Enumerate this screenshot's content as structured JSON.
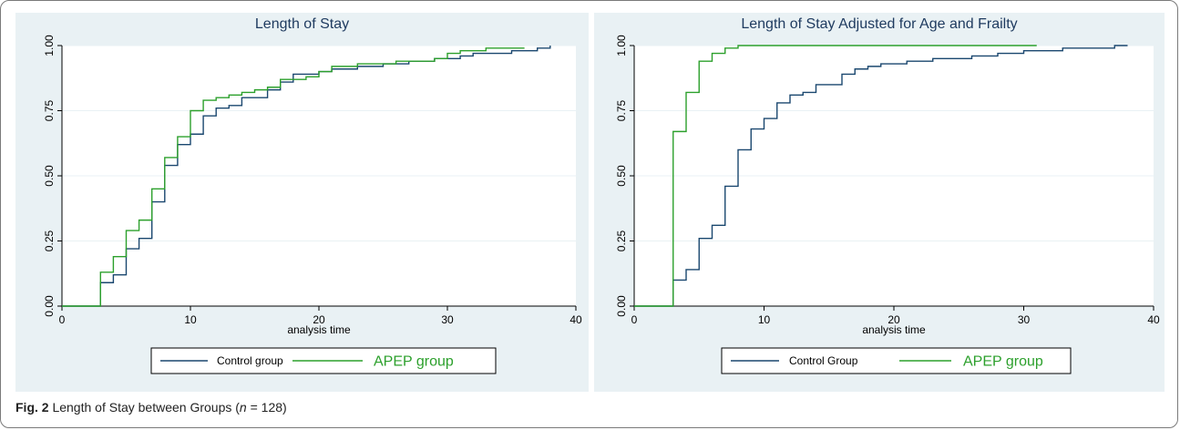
{
  "caption": {
    "label": "Fig. 2",
    "text_before": " Length of Stay between Groups (",
    "n_symbol": "n",
    "text_after": " = 128)"
  },
  "colors": {
    "panel_bg": "#e9f1f4",
    "plot_bg": "#ffffff",
    "gridline": "#e9f1f4",
    "control": "#1a476f",
    "apep": "#2ca02c",
    "apep_label": "#2ca02c"
  },
  "chart_data": [
    {
      "type": "line",
      "step": true,
      "title": "Length of Stay",
      "xlabel": "analysis time",
      "ylabel": "",
      "xlim": [
        0,
        40
      ],
      "ylim": [
        0,
        1
      ],
      "x_ticks": [
        0,
        10,
        20,
        30,
        40
      ],
      "y_ticks": [
        0,
        0.25,
        0.5,
        0.75,
        1
      ],
      "y_tick_labels": [
        "0.00",
        "0.25",
        "0.50",
        "0.75",
        "1.00"
      ],
      "grid": true,
      "legend_position": "bottom",
      "series": [
        {
          "name": "Control group",
          "color_key": "control",
          "x": [
            0,
            3,
            4,
            5,
            6,
            7,
            8,
            9,
            10,
            11,
            12,
            13,
            14,
            15,
            16,
            17,
            18,
            19,
            20,
            21,
            22,
            23,
            24,
            25,
            26,
            27,
            28,
            29,
            30,
            31,
            32,
            33,
            34,
            35,
            36,
            37,
            38
          ],
          "y": [
            0,
            0.09,
            0.12,
            0.22,
            0.26,
            0.4,
            0.54,
            0.62,
            0.66,
            0.73,
            0.76,
            0.77,
            0.8,
            0.8,
            0.83,
            0.86,
            0.89,
            0.89,
            0.9,
            0.91,
            0.91,
            0.92,
            0.92,
            0.93,
            0.93,
            0.94,
            0.94,
            0.95,
            0.95,
            0.96,
            0.97,
            0.97,
            0.97,
            0.98,
            0.98,
            0.99,
            1.0
          ]
        },
        {
          "name": "APEP group",
          "color_key": "apep",
          "x": [
            0,
            3,
            4,
            5,
            6,
            7,
            8,
            9,
            10,
            11,
            12,
            13,
            14,
            15,
            16,
            17,
            18,
            19,
            20,
            21,
            22,
            23,
            24,
            25,
            26,
            27,
            28,
            29,
            30,
            31,
            32,
            33,
            34,
            35,
            36
          ],
          "y": [
            0,
            0.13,
            0.19,
            0.29,
            0.33,
            0.45,
            0.57,
            0.65,
            0.75,
            0.79,
            0.8,
            0.81,
            0.82,
            0.83,
            0.84,
            0.87,
            0.87,
            0.88,
            0.9,
            0.92,
            0.92,
            0.93,
            0.93,
            0.93,
            0.94,
            0.94,
            0.94,
            0.95,
            0.97,
            0.98,
            0.98,
            0.99,
            0.99,
            0.99,
            0.99
          ]
        }
      ]
    },
    {
      "type": "line",
      "step": true,
      "title": "Length of Stay Adjusted for Age and Frailty",
      "xlabel": "analysis time",
      "ylabel": "",
      "xlim": [
        0,
        40
      ],
      "ylim": [
        0,
        1
      ],
      "x_ticks": [
        0,
        10,
        20,
        30,
        40
      ],
      "y_ticks": [
        0,
        0.25,
        0.5,
        0.75,
        1
      ],
      "y_tick_labels": [
        "0.00",
        "0.25",
        "0.50",
        "0.75",
        "1.00"
      ],
      "grid": true,
      "legend_position": "bottom",
      "series": [
        {
          "name": "Control Group",
          "color_key": "control",
          "x": [
            0,
            3,
            4,
            5,
            6,
            7,
            8,
            9,
            10,
            11,
            12,
            13,
            14,
            15,
            16,
            17,
            18,
            19,
            20,
            21,
            22,
            23,
            24,
            25,
            26,
            27,
            28,
            29,
            30,
            31,
            32,
            33,
            34,
            35,
            36,
            37,
            38
          ],
          "y": [
            0,
            0.1,
            0.14,
            0.26,
            0.31,
            0.46,
            0.6,
            0.68,
            0.72,
            0.78,
            0.81,
            0.82,
            0.85,
            0.85,
            0.89,
            0.91,
            0.92,
            0.93,
            0.93,
            0.94,
            0.94,
            0.95,
            0.95,
            0.95,
            0.96,
            0.96,
            0.97,
            0.97,
            0.98,
            0.98,
            0.98,
            0.99,
            0.99,
            0.99,
            0.99,
            1.0,
            1.0
          ]
        },
        {
          "name": "APEP group",
          "color_key": "apep",
          "x": [
            0,
            3,
            4,
            5,
            6,
            7,
            8,
            31
          ],
          "y": [
            0,
            0.67,
            0.82,
            0.94,
            0.97,
            0.99,
            1.0,
            1.0
          ]
        }
      ]
    }
  ]
}
